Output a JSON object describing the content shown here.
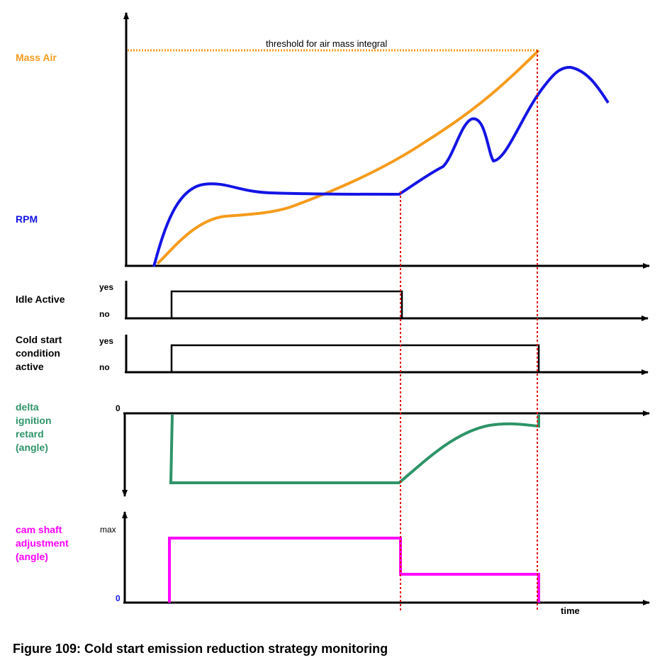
{
  "caption": "Figure 109: Cold start emission reduction strategy monitoring",
  "colors": {
    "mass_air": "#f59b1c",
    "rpm": "#1414e6",
    "idle": "#000000",
    "cold_start": "#000000",
    "ignition": "#2e9468",
    "camshaft": "#ff00ff",
    "marker": "#e01010"
  },
  "top_panel": {
    "mass_air_label": "Mass Air",
    "rpm_label": "RPM",
    "threshold_label": "threshold for air mass integral"
  },
  "idle_panel": {
    "label": "Idle Active",
    "yes": "yes",
    "no": "no"
  },
  "cold_panel": {
    "label_lines": [
      "Cold start",
      "condition",
      "active"
    ],
    "yes": "yes",
    "no": "no"
  },
  "ignition_panel": {
    "label_lines": [
      "delta",
      "ignition",
      "retard",
      "(angle)"
    ],
    "zero": "0"
  },
  "camshaft_panel": {
    "label_lines": [
      "cam shaft",
      "adjustment",
      "(angle)"
    ],
    "max": "max",
    "zero": "0"
  },
  "x_axis_label": "time"
}
